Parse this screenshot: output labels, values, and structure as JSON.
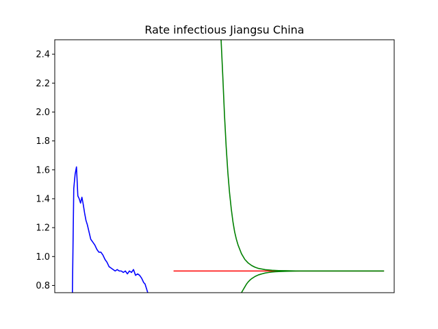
{
  "chart_data": {
    "type": "line",
    "title": "Rate infectious Jiangsu China",
    "xlabel": "",
    "ylabel": "",
    "ylim": [
      0.75,
      2.5
    ],
    "xlim": [
      0,
      100
    ],
    "yticks": [
      "0.8",
      "1.0",
      "1.2",
      "1.4",
      "1.6",
      "1.8",
      "2.0",
      "2.2",
      "2.4"
    ],
    "show_x_ticks": false,
    "grid": false,
    "series": [
      {
        "color": "#0000ff",
        "x": [
          5.2,
          5.6,
          6.0,
          6.4,
          6.8,
          7.2,
          7.6,
          8.0,
          8.4,
          8.8,
          9.2,
          9.6,
          10.0,
          10.6,
          11.2,
          11.8,
          12.4,
          13.0,
          13.6,
          14.2,
          14.8,
          15.4,
          16.0,
          16.6,
          17.2,
          17.8,
          18.4,
          19.0,
          19.6,
          20.2,
          20.8,
          21.4,
          22.0,
          22.6,
          23.2,
          23.8,
          24.4,
          25.0,
          25.6,
          26.2,
          26.6,
          27.0,
          27.4,
          27.8,
          28.2
        ],
        "values": [
          0.75,
          1.47,
          1.57,
          1.62,
          1.42,
          1.4,
          1.37,
          1.41,
          1.36,
          1.3,
          1.25,
          1.22,
          1.18,
          1.12,
          1.1,
          1.08,
          1.05,
          1.03,
          1.03,
          1.01,
          0.98,
          0.96,
          0.93,
          0.92,
          0.91,
          0.9,
          0.91,
          0.9,
          0.9,
          0.89,
          0.9,
          0.88,
          0.9,
          0.89,
          0.91,
          0.87,
          0.88,
          0.87,
          0.85,
          0.82,
          0.81,
          0.78,
          0.75,
          0.72,
          0.7
        ]
      },
      {
        "color": "#ff0000",
        "x": [
          35,
          97
        ],
        "values": [
          0.9,
          0.9
        ]
      },
      {
        "color": "#008000",
        "x": [
          49.0,
          49.5,
          50.0,
          50.5,
          51.0,
          51.5,
          52.0,
          52.5,
          53.0,
          53.5,
          54.0,
          55.0,
          56.0,
          57.0,
          58.0,
          59.0,
          60.0,
          62.0,
          64.0,
          66.0,
          68.0,
          70.0,
          72.0,
          75.0,
          80.0,
          85.0,
          90.0,
          97.0
        ],
        "values": [
          2.5,
          2.25,
          1.98,
          1.76,
          1.58,
          1.44,
          1.33,
          1.24,
          1.17,
          1.12,
          1.08,
          1.02,
          0.98,
          0.955,
          0.938,
          0.926,
          0.918,
          0.909,
          0.905,
          0.903,
          0.902,
          0.901,
          0.9,
          0.9,
          0.9,
          0.9,
          0.9,
          0.9
        ]
      },
      {
        "color": "#008000",
        "x": [
          55.0,
          55.5,
          56.0,
          56.5,
          57.0,
          57.5,
          58.0,
          59.0,
          60.0,
          61.0,
          62.0,
          63.0,
          64.0,
          65.0,
          66.0,
          68.0,
          70.0,
          72.0,
          75.0,
          80.0,
          85.0,
          90.0,
          97.0
        ],
        "values": [
          0.75,
          0.77,
          0.79,
          0.81,
          0.825,
          0.837,
          0.847,
          0.862,
          0.873,
          0.88,
          0.886,
          0.89,
          0.893,
          0.895,
          0.896,
          0.898,
          0.899,
          0.9,
          0.9,
          0.9,
          0.9,
          0.9,
          0.9
        ]
      }
    ]
  }
}
